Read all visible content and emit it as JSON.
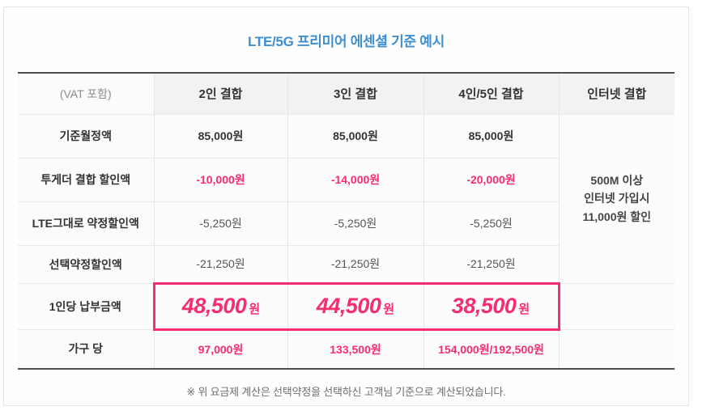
{
  "colors": {
    "accent_blue": "#3e8ed0",
    "accent_pink": "#f62e6e",
    "dark_border": "#4d4d4d",
    "header_bg": "#f2f2f2"
  },
  "chart_data": {
    "type": "table",
    "title": "LTE/5G 프리미어 에센셜 기준 예시",
    "columns": [
      "(VAT 포함)",
      "2인 결합",
      "3인 결합",
      "4인/5인 결합",
      "인터넷 결합"
    ],
    "rows": [
      {
        "label": "기준월정액",
        "values": [
          "85,000원",
          "85,000원",
          "85,000원"
        ]
      },
      {
        "label": "투게더 결합 할인액",
        "values": [
          "-10,000원",
          "-14,000원",
          "-20,000원"
        ]
      },
      {
        "label": "LTE그대로 약정할인액",
        "values": [
          "-5,250원",
          "-5,250원",
          "-5,250원"
        ]
      },
      {
        "label": "선택약정할인액",
        "values": [
          "-21,250원",
          "-21,250원",
          "-21,250원"
        ]
      },
      {
        "label": "1인당 납부금액",
        "values": [
          "48,500",
          "44,500",
          "38,500"
        ],
        "suffix": "원"
      },
      {
        "label": "가구 당",
        "values": [
          "97,000원",
          "133,500원",
          "154,000원/192,500원"
        ]
      }
    ],
    "internet_note": "500M 이상\n인터넷 가입시\n11,000원 할인",
    "footnote": "※ 위 요금제 계산은 선택약정을 선택하신 고객님 기준으로 계산되었습니다."
  }
}
